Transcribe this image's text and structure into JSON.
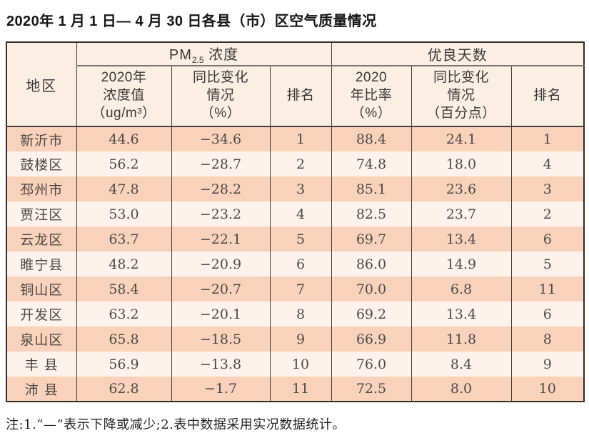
{
  "title": "2020年 1 月 1 日— 4 月 30 日各县（市）区空气质量情况",
  "table": {
    "region_header": "地区",
    "group_pm": {
      "main": "PM",
      "sub": "2.5",
      "rest": " 浓度"
    },
    "group_good": "优良天数",
    "subheaders": {
      "pm_value": "2020年\n浓度值\n（ug/m³）",
      "pm_change": "同比变化\n情况\n（%）",
      "pm_rank": "排名",
      "good_rate": "2020\n年比率\n（%）",
      "good_change": "同比变化\n情况\n（百分点）",
      "good_rank": "排名"
    },
    "rows": [
      {
        "region": "新沂市",
        "pm_value": "44.6",
        "pm_change": "−34.6",
        "pm_rank": "1",
        "good_rate": "88.4",
        "good_change": "24.1",
        "good_rank": "1"
      },
      {
        "region": "鼓楼区",
        "pm_value": "56.2",
        "pm_change": "−28.7",
        "pm_rank": "2",
        "good_rate": "74.8",
        "good_change": "18.0",
        "good_rank": "4"
      },
      {
        "region": "邳州市",
        "pm_value": "47.8",
        "pm_change": "−28.2",
        "pm_rank": "3",
        "good_rate": "85.1",
        "good_change": "23.6",
        "good_rank": "3"
      },
      {
        "region": "贾汪区",
        "pm_value": "53.0",
        "pm_change": "−23.2",
        "pm_rank": "4",
        "good_rate": "82.5",
        "good_change": "23.7",
        "good_rank": "2"
      },
      {
        "region": "云龙区",
        "pm_value": "63.7",
        "pm_change": "−22.1",
        "pm_rank": "5",
        "good_rate": "69.7",
        "good_change": "13.4",
        "good_rank": "6"
      },
      {
        "region": "睢宁县",
        "pm_value": "48.2",
        "pm_change": "−20.9",
        "pm_rank": "6",
        "good_rate": "86.0",
        "good_change": "14.9",
        "good_rank": "5"
      },
      {
        "region": "铜山区",
        "pm_value": "58.4",
        "pm_change": "−20.7",
        "pm_rank": "7",
        "good_rate": "70.0",
        "good_change": "6.8",
        "good_rank": "11"
      },
      {
        "region": "开发区",
        "pm_value": "63.2",
        "pm_change": "−20.1",
        "pm_rank": "8",
        "good_rate": "69.2",
        "good_change": "13.4",
        "good_rank": "6"
      },
      {
        "region": "泉山区",
        "pm_value": "65.8",
        "pm_change": "−18.5",
        "pm_rank": "9",
        "good_rate": "66.9",
        "good_change": "11.8",
        "good_rank": "8"
      },
      {
        "region": "丰 县",
        "pm_value": "56.9",
        "pm_change": "−13.8",
        "pm_rank": "10",
        "good_rate": "76.0",
        "good_change": "8.4",
        "good_rank": "9"
      },
      {
        "region": "沛 县",
        "pm_value": "62.8",
        "pm_change": "−1.7",
        "pm_rank": "11",
        "good_rate": "72.5",
        "good_change": "8.0",
        "good_rank": "10"
      }
    ]
  },
  "note": "注:1.“—”表示下降或减少;2.表中数据采用实况数据统计。",
  "colors": {
    "row_odd": "#f8d2bb",
    "row_even": "#fdf3ec",
    "header_bg": "#fbeee3",
    "border_dark": "#433c36",
    "text_dark": "#4f4a45"
  },
  "chart_data": {
    "type": "table",
    "title": "2020年1月1日—4月30日各县（市）区空气质量情况",
    "columns": [
      "地区",
      "PM2.5浓度 2020年浓度值（ug/m³）",
      "PM2.5浓度 同比变化情况（%）",
      "PM2.5浓度 排名",
      "优良天数 2020年比率（%）",
      "优良天数 同比变化情况（百分点）",
      "优良天数 排名"
    ],
    "rows": [
      [
        "新沂市",
        44.6,
        -34.6,
        1,
        88.4,
        24.1,
        1
      ],
      [
        "鼓楼区",
        56.2,
        -28.7,
        2,
        74.8,
        18.0,
        4
      ],
      [
        "邳州市",
        47.8,
        -28.2,
        3,
        85.1,
        23.6,
        3
      ],
      [
        "贾汪区",
        53.0,
        -23.2,
        4,
        82.5,
        23.7,
        2
      ],
      [
        "云龙区",
        63.7,
        -22.1,
        5,
        69.7,
        13.4,
        6
      ],
      [
        "睢宁县",
        48.2,
        -20.9,
        6,
        86.0,
        14.9,
        5
      ],
      [
        "铜山区",
        58.4,
        -20.7,
        7,
        70.0,
        6.8,
        11
      ],
      [
        "开发区",
        63.2,
        -20.1,
        8,
        69.2,
        13.4,
        6
      ],
      [
        "泉山区",
        65.8,
        -18.5,
        9,
        66.9,
        11.8,
        8
      ],
      [
        "丰县",
        56.9,
        -13.8,
        10,
        76.0,
        8.4,
        9
      ],
      [
        "沛县",
        62.8,
        -1.7,
        11,
        72.5,
        8.0,
        10
      ]
    ],
    "note": "注:1.“—”表示下降或减少;2.表中数据采用实况数据统计。"
  }
}
